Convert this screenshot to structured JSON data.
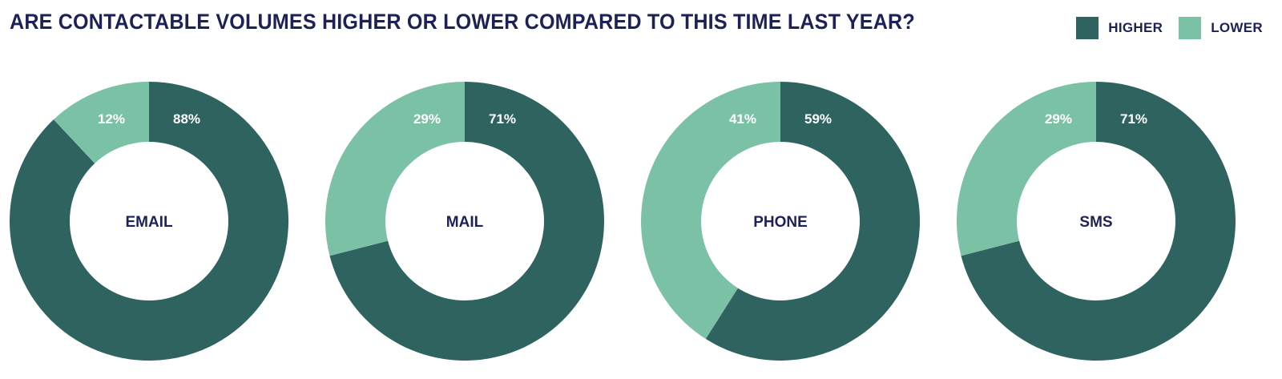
{
  "title": "ARE CONTACTABLE VOLUMES HIGHER OR LOWER COMPARED TO THIS TIME LAST YEAR?",
  "legend": {
    "items": [
      {
        "label": "HIGHER",
        "color": "#2e6360"
      },
      {
        "label": "LOWER",
        "color": "#7bc1a6"
      }
    ]
  },
  "chart_data": {
    "type": "pie",
    "variant": "donut",
    "legend_placement": "top-right",
    "series_names": [
      "HIGHER",
      "LOWER"
    ],
    "colors": {
      "HIGHER": "#2e6360",
      "LOWER": "#7bc1a6"
    },
    "charts": [
      {
        "category": "EMAIL",
        "higher": 88,
        "lower": 12,
        "higher_label": "88%",
        "lower_label": "12%"
      },
      {
        "category": "MAIL",
        "higher": 71,
        "lower": 29,
        "higher_label": "71%",
        "lower_label": "29%"
      },
      {
        "category": "PHONE",
        "higher": 59,
        "lower": 41,
        "higher_label": "59%",
        "lower_label": "41%"
      },
      {
        "category": "SMS",
        "higher": 71,
        "lower": 29,
        "higher_label": "71%",
        "lower_label": "29%"
      }
    ]
  }
}
